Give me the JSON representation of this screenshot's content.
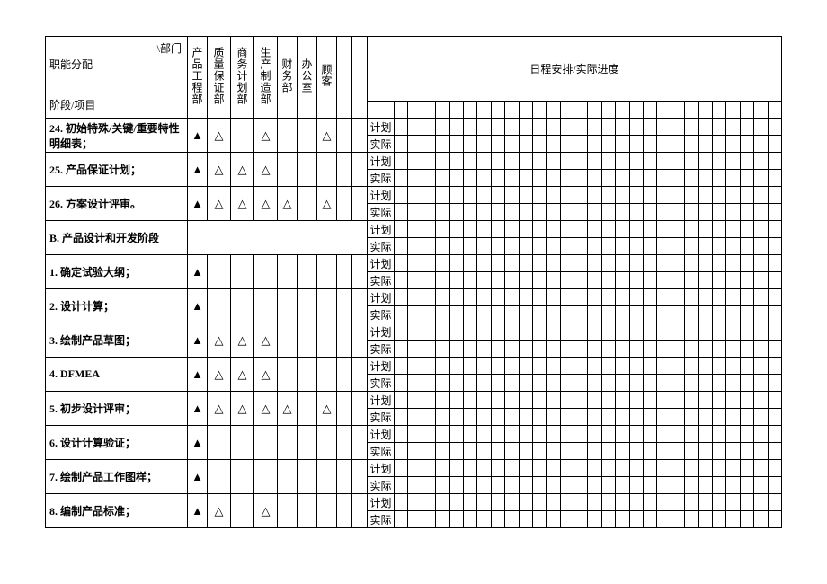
{
  "header": {
    "corner_top": "\\部门",
    "corner_mid": "职能分配",
    "corner_bot": "阶段/项目",
    "dept1": "产品工程部",
    "dept2": "质量保证部",
    "dept3": "商务计划部",
    "dept4": "生产制造部",
    "dept5": "财务部",
    "dept6": "办公室",
    "dept7": "顾客",
    "schedule_title": "日程安排/实际进度",
    "plan": "计划",
    "actual": "实际"
  },
  "symbols": {
    "lead": "▲",
    "support": "△"
  },
  "rows": [
    {
      "label": "24. 初始特殊/关键/重要特性明细表；",
      "marks": [
        "▲",
        "△",
        "",
        "△",
        "",
        "",
        "△",
        "",
        ""
      ]
    },
    {
      "label": "25. 产品保证计划；",
      "marks": [
        "▲",
        "△",
        "△",
        "△",
        "",
        "",
        "",
        "",
        ""
      ]
    },
    {
      "label": "26. 方案设计评审。",
      "marks": [
        "▲",
        "△",
        "△",
        "△",
        "△",
        "",
        "△",
        "",
        ""
      ]
    },
    {
      "label": "B. 产品设计和开发阶段",
      "marks": null
    },
    {
      "label": "1. 确定试验大纲；",
      "marks": [
        "▲",
        "",
        "",
        "",
        "",
        "",
        "",
        "",
        ""
      ]
    },
    {
      "label": "2. 设计计算；",
      "marks": [
        "▲",
        "",
        "",
        "",
        "",
        "",
        "",
        "",
        ""
      ]
    },
    {
      "label": "3. 绘制产品草图；",
      "marks": [
        "▲",
        "△",
        "△",
        "△",
        "",
        "",
        "",
        "",
        ""
      ]
    },
    {
      "label": "4. DFMEA",
      "marks": [
        "▲",
        "△",
        "△",
        "△",
        "",
        "",
        "",
        "",
        ""
      ]
    },
    {
      "label": "5. 初步设计评审；",
      "marks": [
        "▲",
        "△",
        "△",
        "△",
        "△",
        "",
        "△",
        "",
        ""
      ]
    },
    {
      "label": "6. 设计计算验证；",
      "marks": [
        "▲",
        "",
        "",
        "",
        "",
        "",
        "",
        "",
        ""
      ]
    },
    {
      "label": "7. 绘制产品工作图样；",
      "marks": [
        "▲",
        "",
        "",
        "",
        "",
        "",
        "",
        "",
        ""
      ]
    },
    {
      "label": "8. 编制产品标准；",
      "marks": [
        "▲",
        "△",
        "",
        "△",
        "",
        "",
        "",
        "",
        ""
      ]
    }
  ],
  "schedule_cols": 28,
  "colors": {
    "border": "#000000",
    "bg": "#ffffff",
    "text": "#000000"
  },
  "fonts": {
    "body_size_pt": 9,
    "family": "SimSun"
  }
}
